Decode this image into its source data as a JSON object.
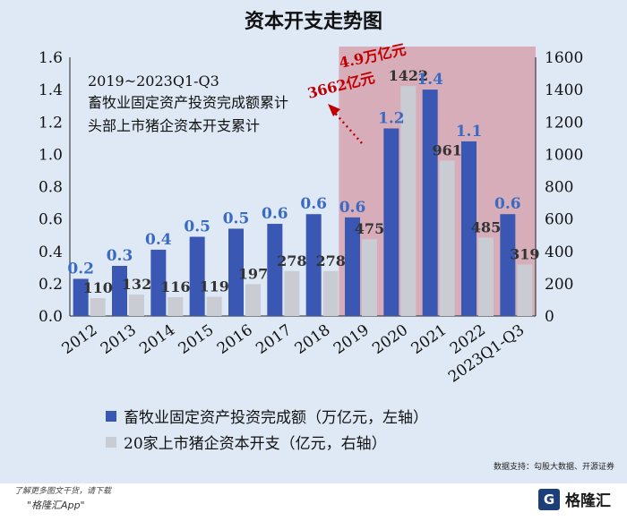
{
  "page_title": "资本开支走势图",
  "chart_data": {
    "type": "bar",
    "title": "资本开支走势图",
    "categories": [
      "2012",
      "2013",
      "2014",
      "2015",
      "2016",
      "2017",
      "2018",
      "2019",
      "2020",
      "2021",
      "2022",
      "2023Q1-Q3"
    ],
    "series": [
      {
        "name": "畜牧业固定资产投资完成额（万亿元，左轴）",
        "axis": "left",
        "values": [
          0.23,
          0.31,
          0.41,
          0.49,
          0.54,
          0.57,
          0.63,
          0.61,
          1.16,
          1.4,
          1.08,
          0.63
        ],
        "labels": [
          "0.2",
          "0.3",
          "0.4",
          "0.5",
          "0.5",
          "0.6",
          "0.6",
          "0.6",
          "1.2",
          "1.4",
          "1.1",
          "0.6"
        ],
        "color": "#3a58b3"
      },
      {
        "name": "20家上市猪企资本开支（亿元，右轴）",
        "axis": "right",
        "values": [
          110,
          132,
          116,
          119,
          197,
          278,
          278,
          475,
          1422,
          961,
          485,
          319
        ],
        "labels": [
          "110",
          "132",
          "116",
          "119",
          "197",
          "278",
          "278",
          "475",
          "1422",
          "961",
          "485",
          "319"
        ],
        "color": "#c9ccd2"
      }
    ],
    "y_left": {
      "min": 0,
      "max": 1.6,
      "ticks": [
        "0.0",
        "0.2",
        "0.4",
        "0.6",
        "0.8",
        "1.0",
        "1.2",
        "1.4",
        "1.6"
      ]
    },
    "y_right": {
      "min": 0,
      "max": 1600,
      "ticks": [
        "0",
        "200",
        "400",
        "600",
        "800",
        "1000",
        "1200",
        "1400",
        "1600"
      ]
    },
    "highlight_range": [
      "2019",
      "2023Q1-Q3"
    ],
    "highlight_color": "#d7adba",
    "label_color_left": "#3a6bc4",
    "label_color_right": "#333333",
    "annotation": {
      "line1": "2019~2023Q1-Q3",
      "line2": "畜牧业固定资产投资完成额累计",
      "value2": "4.9万亿元",
      "line3": "头部上市猪企资本开支累计",
      "value3": "3662亿元",
      "accent_color": "#c00000"
    },
    "legend_placement": "bottom"
  },
  "source": "数据支持：勾股大数据、开源证券",
  "footer": {
    "note": "了解更多图文干货，请下载",
    "app": "\"格隆汇App\"",
    "logo_text": "格隆汇"
  }
}
